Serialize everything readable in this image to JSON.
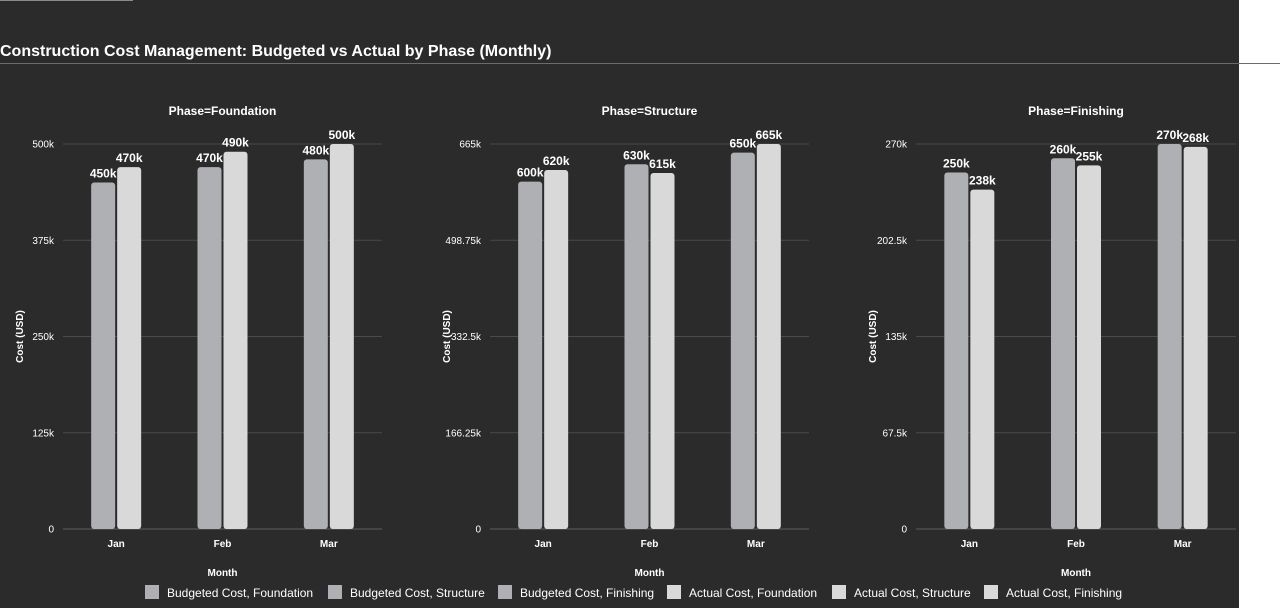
{
  "title": "Construction Cost Management: Budgeted vs Actual by Phase (Monthly)",
  "colors": {
    "background": "#2b2b2b",
    "budgeted": "#aeb0b3",
    "actual": "#d9d9da",
    "gridline": "#4a4a4a",
    "text": "#ffffff"
  },
  "legend": {
    "placement": "bottom",
    "items": [
      {
        "label": "Budgeted Cost, Foundation",
        "color": "#aeb0b3"
      },
      {
        "label": "Budgeted Cost, Structure",
        "color": "#aeb0b3"
      },
      {
        "label": "Budgeted Cost, Finishing",
        "color": "#aeb0b3"
      },
      {
        "label": "Actual Cost, Foundation",
        "color": "#d9d9da"
      },
      {
        "label": "Actual Cost, Structure",
        "color": "#d9d9da"
      },
      {
        "label": "Actual Cost, Finishing",
        "color": "#d9d9da"
      }
    ]
  },
  "chart_data": [
    {
      "type": "bar",
      "title": "Phase=Foundation",
      "xlabel": "Month",
      "ylabel": "Cost (USD)",
      "categories": [
        "Jan",
        "Feb",
        "Mar"
      ],
      "ylim": [
        0,
        500000
      ],
      "yticks": [
        "0",
        "125k",
        "250k",
        "375k",
        "500k"
      ],
      "grid": true,
      "series": [
        {
          "name": "Budgeted Cost",
          "color": "#aeb0b3",
          "values": [
            450000,
            470000,
            480000
          ],
          "labels": [
            "450k",
            "470k",
            "480k"
          ]
        },
        {
          "name": "Actual Cost",
          "color": "#d9d9da",
          "values": [
            470000,
            490000,
            500000
          ],
          "labels": [
            "470k",
            "490k",
            "500k"
          ]
        }
      ]
    },
    {
      "type": "bar",
      "title": "Phase=Structure",
      "xlabel": "Month",
      "ylabel": "Cost (USD)",
      "categories": [
        "Jan",
        "Feb",
        "Mar"
      ],
      "ylim": [
        0,
        665000
      ],
      "yticks": [
        "0",
        "166.25k",
        "332.5k",
        "498.75k",
        "665k"
      ],
      "grid": true,
      "series": [
        {
          "name": "Budgeted Cost",
          "color": "#aeb0b3",
          "values": [
            600000,
            630000,
            650000
          ],
          "labels": [
            "600k",
            "630k",
            "650k"
          ]
        },
        {
          "name": "Actual Cost",
          "color": "#d9d9da",
          "values": [
            620000,
            615000,
            665000
          ],
          "labels": [
            "620k",
            "615k",
            "665k"
          ]
        }
      ]
    },
    {
      "type": "bar",
      "title": "Phase=Finishing",
      "xlabel": "Month",
      "ylabel": "Cost (USD)",
      "categories": [
        "Jan",
        "Feb",
        "Mar"
      ],
      "ylim": [
        0,
        270000
      ],
      "yticks": [
        "0",
        "67.5k",
        "135k",
        "202.5k",
        "270k"
      ],
      "grid": true,
      "series": [
        {
          "name": "Budgeted Cost",
          "color": "#aeb0b3",
          "values": [
            250000,
            260000,
            270000
          ],
          "labels": [
            "250k",
            "260k",
            "270k"
          ]
        },
        {
          "name": "Actual Cost",
          "color": "#d9d9da",
          "values": [
            238000,
            255000,
            268000
          ],
          "labels": [
            "238k",
            "255k",
            "268k"
          ]
        }
      ]
    }
  ]
}
